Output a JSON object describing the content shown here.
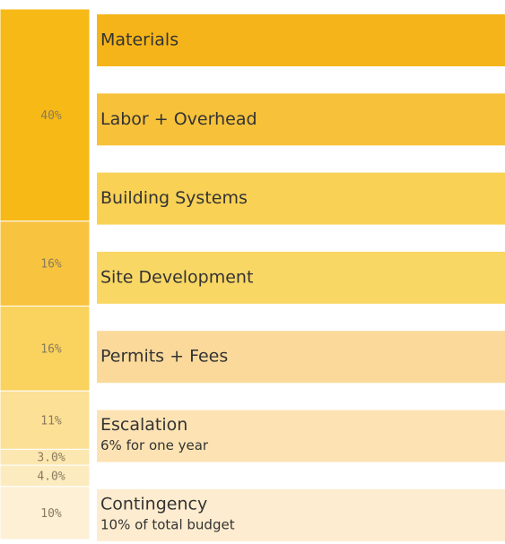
{
  "chart_data": {
    "type": "stacked-column",
    "values": [
      40,
      16,
      16,
      11,
      3,
      4,
      10
    ],
    "value_labels": [
      "40%",
      "16%",
      "16%",
      "11%",
      "3.0%",
      "4.0%",
      "10%"
    ],
    "colors": [
      "#f6b916",
      "#f8c440",
      "#fad35f",
      "#fbe095",
      "#fce7b0",
      "#fdebc0",
      "#fdf0d5"
    ],
    "rows": [
      {
        "label": "Materials",
        "color": "#f5b51a"
      },
      {
        "label": "Labor + Overhead",
        "color": "#f7c23a"
      },
      {
        "label": "Building Systems",
        "color": "#f9d155"
      },
      {
        "label": "Site Development",
        "color": "#f9d765"
      },
      {
        "label": "Permits + Fees",
        "color": "#fbd99a"
      },
      {
        "label": "Escalation",
        "sublabel": "6% for one year",
        "color": "#fde3b3"
      },
      {
        "label": "Contingency",
        "sublabel": "10% of total budget",
        "color": "#fdeccf"
      }
    ]
  }
}
